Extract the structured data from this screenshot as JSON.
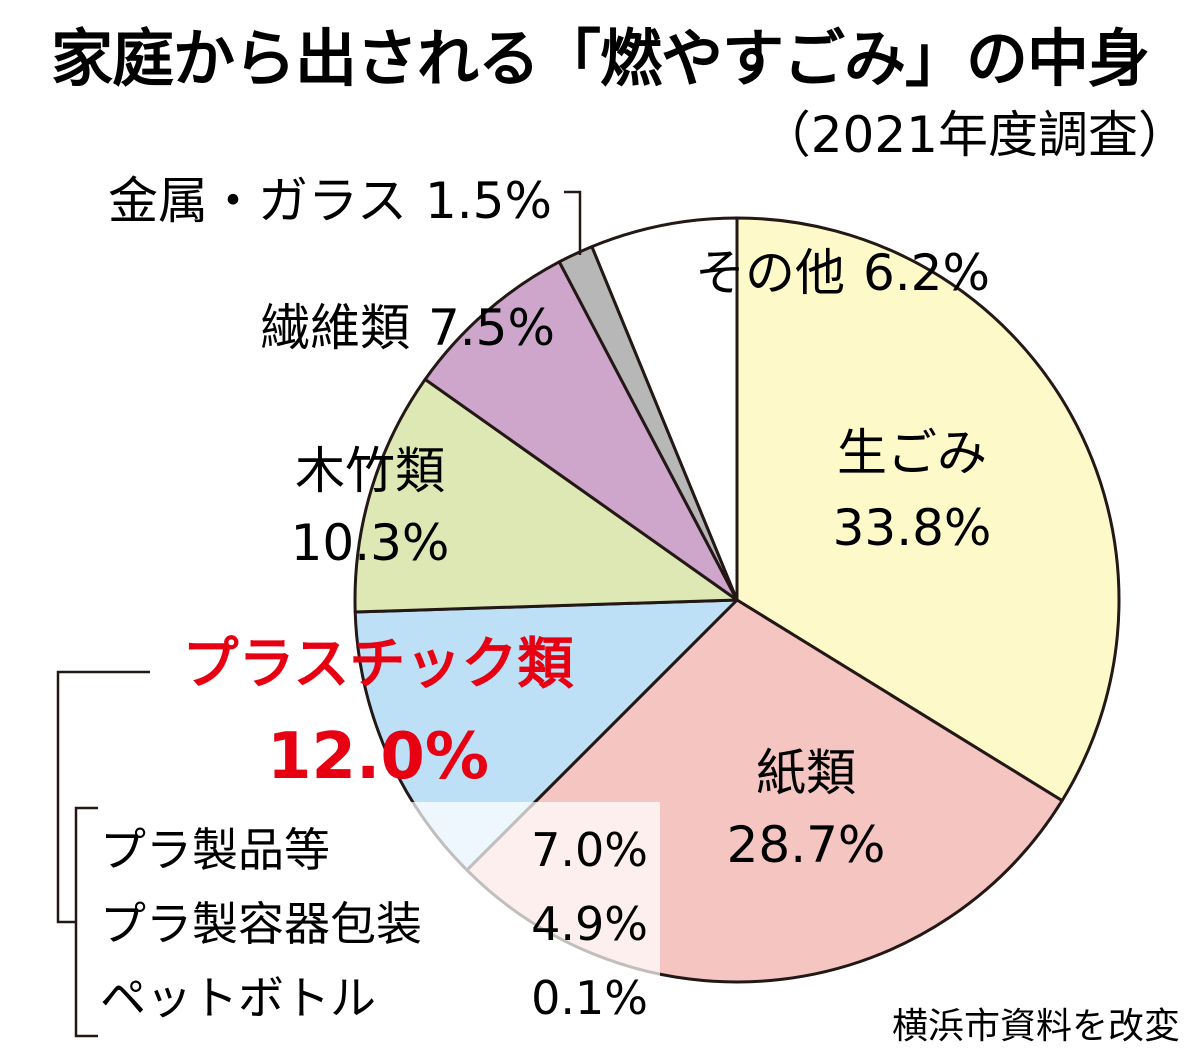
{
  "chart_data": {
    "type": "pie",
    "title": "家庭から出される「燃やすごみ」の中身",
    "subtitle": "（2021年度調査）",
    "slices": [
      {
        "key": "namagomi",
        "label": "生ごみ",
        "value_label": "33.8%",
        "value": 33.8,
        "color": "#fdf9c8"
      },
      {
        "key": "kami",
        "label": "紙類",
        "value_label": "28.7%",
        "value": 28.7,
        "color": "#f5c5c2"
      },
      {
        "key": "plastic",
        "label": "プラスチック類",
        "value_label": "12.0%",
        "value": 12.0,
        "color": "#bde0f6"
      },
      {
        "key": "mokuchiku",
        "label": "木竹類",
        "value_label": "10.3%",
        "value": 10.3,
        "color": "#dde8b5"
      },
      {
        "key": "seni",
        "label": "繊維類",
        "value_label": "7.5%",
        "value": 7.5,
        "color": "#cfa6cb"
      },
      {
        "key": "kinzoku",
        "label": "金属・ガラス",
        "value_label": "1.5%",
        "value": 1.5,
        "color": "#b7b7b7"
      },
      {
        "key": "sonota",
        "label": "その他",
        "value_label": "6.2%",
        "value": 6.2,
        "color": "#ffffff"
      }
    ],
    "breakdown": {
      "parent": "プラスチック類",
      "items": [
        {
          "label": "プラ製品等",
          "value_label": "7.0%",
          "value": 7.0
        },
        {
          "label": "プラ製容器包装",
          "value_label": "4.9%",
          "value": 4.9
        },
        {
          "label": "ペットボトル",
          "value_label": "0.1%",
          "value": 0.1
        }
      ]
    },
    "highlight_color": "#e60012",
    "source": "横浜市資料を改変"
  }
}
